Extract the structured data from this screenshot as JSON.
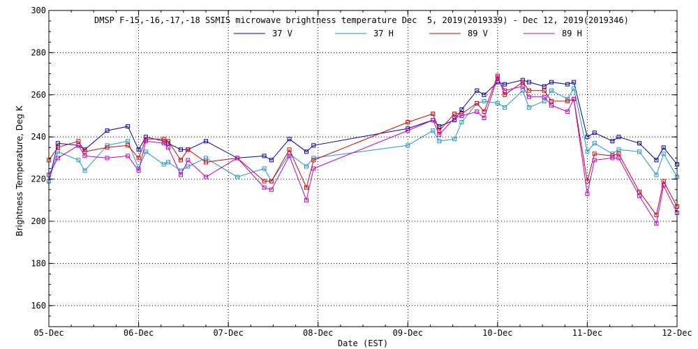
{
  "chart_data": {
    "type": "line",
    "title": "DMSP F-15,-16,-17,-18 SSMIS microwave brightness temperature Dec  5, 2019(2019339) - Dec 12, 2019(2019346)",
    "xlabel": "Date (EST)",
    "ylabel": "Brightness Temperature, Deg K",
    "x_unit": "days since 05-Dec",
    "xlim": [
      0,
      7
    ],
    "ylim": [
      150,
      300
    ],
    "y_ticks": [
      160,
      180,
      200,
      220,
      240,
      260,
      280,
      300
    ],
    "x_ticks": [
      {
        "x": 0,
        "label": "05-Dec"
      },
      {
        "x": 1,
        "label": "06-Dec"
      },
      {
        "x": 2,
        "label": "07-Dec"
      },
      {
        "x": 3,
        "label": "08-Dec"
      },
      {
        "x": 4,
        "label": "09-Dec"
      },
      {
        "x": 5,
        "label": "10-Dec"
      },
      {
        "x": 6,
        "label": "11-Dec"
      },
      {
        "x": 7,
        "label": "12-Dec"
      }
    ],
    "grid": true,
    "legend_position": "top",
    "series": [
      {
        "name": "37 V",
        "color": "#0000b4",
        "points": [
          [
            0.0,
            219
          ],
          [
            0.1,
            237
          ],
          [
            0.33,
            236
          ],
          [
            0.4,
            234
          ],
          [
            0.65,
            243
          ],
          [
            0.88,
            245
          ],
          [
            1.0,
            234
          ],
          [
            1.08,
            240
          ],
          [
            1.28,
            238
          ],
          [
            1.33,
            237
          ],
          [
            1.47,
            234
          ],
          [
            1.55,
            234
          ],
          [
            1.75,
            238
          ],
          [
            2.1,
            230
          ],
          [
            2.4,
            231
          ],
          [
            2.48,
            229
          ],
          [
            2.68,
            239
          ],
          [
            2.87,
            233
          ],
          [
            2.95,
            236
          ],
          [
            4.0,
            244
          ],
          [
            4.28,
            248
          ],
          [
            4.35,
            245
          ],
          [
            4.52,
            248
          ],
          [
            4.6,
            253
          ],
          [
            4.77,
            262
          ],
          [
            4.85,
            260
          ],
          [
            5.0,
            266
          ],
          [
            5.08,
            265
          ],
          [
            5.28,
            267
          ],
          [
            5.35,
            266
          ],
          [
            5.52,
            264
          ],
          [
            5.6,
            266
          ],
          [
            5.78,
            265
          ],
          [
            5.85,
            266
          ],
          [
            6.0,
            240
          ],
          [
            6.08,
            242
          ],
          [
            6.28,
            238
          ],
          [
            6.35,
            240
          ],
          [
            6.58,
            237
          ],
          [
            6.77,
            229
          ],
          [
            6.85,
            235
          ],
          [
            7.0,
            227
          ]
        ]
      },
      {
        "name": "37 H",
        "color": "#1e96d2",
        "points": [
          [
            0.0,
            219
          ],
          [
            0.1,
            233
          ],
          [
            0.33,
            229
          ],
          [
            0.4,
            224
          ],
          [
            0.65,
            236
          ],
          [
            0.88,
            238
          ],
          [
            1.0,
            225
          ],
          [
            1.08,
            233
          ],
          [
            1.28,
            227
          ],
          [
            1.33,
            228
          ],
          [
            1.47,
            224
          ],
          [
            1.55,
            226
          ],
          [
            1.75,
            230
          ],
          [
            2.1,
            221
          ],
          [
            2.4,
            225
          ],
          [
            2.48,
            219
          ],
          [
            2.68,
            232
          ],
          [
            2.87,
            226
          ],
          [
            2.95,
            230
          ],
          [
            4.0,
            236
          ],
          [
            4.28,
            243
          ],
          [
            4.35,
            238
          ],
          [
            4.52,
            239
          ],
          [
            4.6,
            247
          ],
          [
            4.77,
            256
          ],
          [
            4.85,
            257
          ],
          [
            5.0,
            256
          ],
          [
            5.08,
            254
          ],
          [
            5.28,
            262
          ],
          [
            5.35,
            254
          ],
          [
            5.52,
            257
          ],
          [
            5.6,
            262
          ],
          [
            5.78,
            258
          ],
          [
            5.85,
            263
          ],
          [
            6.0,
            233
          ],
          [
            6.08,
            237
          ],
          [
            6.28,
            232
          ],
          [
            6.35,
            234
          ],
          [
            6.58,
            233
          ],
          [
            6.77,
            222
          ],
          [
            6.85,
            232
          ],
          [
            7.0,
            221
          ]
        ]
      },
      {
        "name": "89 V",
        "color": "#dc0000",
        "points": [
          [
            0.0,
            229
          ],
          [
            0.1,
            235
          ],
          [
            0.33,
            238
          ],
          [
            0.4,
            233
          ],
          [
            0.65,
            235
          ],
          [
            0.88,
            236
          ],
          [
            1.0,
            230
          ],
          [
            1.08,
            239
          ],
          [
            1.28,
            239
          ],
          [
            1.33,
            238
          ],
          [
            1.47,
            229
          ],
          [
            1.55,
            234
          ],
          [
            1.75,
            228
          ],
          [
            2.1,
            230
          ],
          [
            2.4,
            219
          ],
          [
            2.48,
            219
          ],
          [
            2.68,
            234
          ],
          [
            2.87,
            216
          ],
          [
            2.95,
            229
          ],
          [
            4.0,
            247
          ],
          [
            4.28,
            251
          ],
          [
            4.35,
            243
          ],
          [
            4.52,
            251
          ],
          [
            4.6,
            251
          ],
          [
            4.77,
            256
          ],
          [
            4.85,
            252
          ],
          [
            5.0,
            269
          ],
          [
            5.08,
            260
          ],
          [
            5.28,
            266
          ],
          [
            5.35,
            262
          ],
          [
            5.52,
            262
          ],
          [
            5.6,
            257
          ],
          [
            5.78,
            257
          ],
          [
            5.85,
            258
          ],
          [
            6.0,
            219
          ],
          [
            6.08,
            232
          ],
          [
            6.28,
            231
          ],
          [
            6.35,
            232
          ],
          [
            6.58,
            214
          ],
          [
            6.77,
            203
          ],
          [
            6.85,
            219
          ],
          [
            7.0,
            207
          ]
        ]
      },
      {
        "name": "89 H",
        "color": "#c800c8",
        "points": [
          [
            0.0,
            222
          ],
          [
            0.1,
            230
          ],
          [
            0.33,
            236
          ],
          [
            0.4,
            231
          ],
          [
            0.65,
            230
          ],
          [
            0.88,
            231
          ],
          [
            1.0,
            224
          ],
          [
            1.08,
            238
          ],
          [
            1.28,
            237
          ],
          [
            1.33,
            235
          ],
          [
            1.47,
            222
          ],
          [
            1.55,
            229
          ],
          [
            1.75,
            221
          ],
          [
            2.1,
            230
          ],
          [
            2.4,
            216
          ],
          [
            2.48,
            215
          ],
          [
            2.68,
            231
          ],
          [
            2.87,
            210
          ],
          [
            2.95,
            225
          ],
          [
            4.0,
            243
          ],
          [
            4.28,
            248
          ],
          [
            4.35,
            241
          ],
          [
            4.52,
            249
          ],
          [
            4.6,
            250
          ],
          [
            4.77,
            252
          ],
          [
            4.85,
            249
          ],
          [
            5.0,
            268
          ],
          [
            5.08,
            262
          ],
          [
            5.28,
            264
          ],
          [
            5.35,
            259
          ],
          [
            5.52,
            259
          ],
          [
            5.6,
            255
          ],
          [
            5.78,
            252
          ],
          [
            5.85,
            258
          ],
          [
            6.0,
            213
          ],
          [
            6.08,
            229
          ],
          [
            6.28,
            230
          ],
          [
            6.35,
            230
          ],
          [
            6.58,
            212
          ],
          [
            6.77,
            199
          ],
          [
            6.85,
            217
          ],
          [
            7.0,
            204
          ]
        ]
      }
    ]
  }
}
